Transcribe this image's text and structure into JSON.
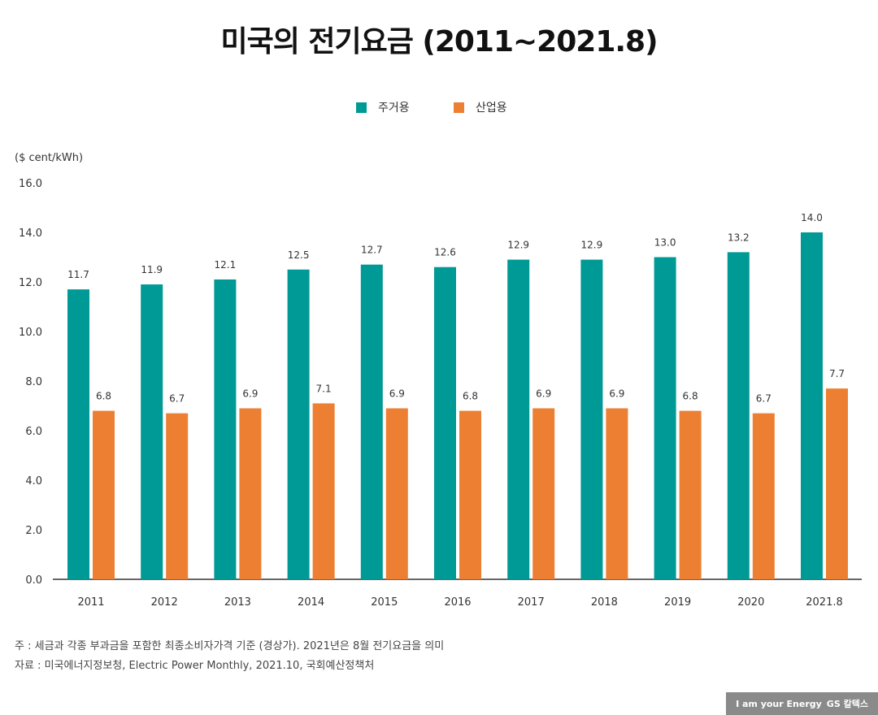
{
  "title": "미국의 전기요금 (2011~2021.8)",
  "unit": "($ cent/kWh)",
  "notes": [
    "주 : 세금과 각종 부과금을 포함한 최종소비자가격 기준 (경상가). 2021년은 8월 전기요금을 의미",
    "자료 : 미국에너지정보청, Electric Power Monthly, 2021.10, 국회예산정책처"
  ],
  "logo": {
    "slogan": "I am your Energy",
    "brand": "GS 칼텍스"
  },
  "chart_data": {
    "type": "bar",
    "title": "미국의 전기요금 (2011~2021.8)",
    "ylabel": "($ cent/kWh)",
    "ylim": [
      0,
      16
    ],
    "yticks": [
      "0.0",
      "2.0",
      "4.0",
      "6.0",
      "8.0",
      "10.0",
      "12.0",
      "14.0",
      "16.0"
    ],
    "grid": false,
    "legend_position": "top-center",
    "categories": [
      "2011",
      "2012",
      "2013",
      "2014",
      "2015",
      "2016",
      "2017",
      "2018",
      "2019",
      "2020",
      "2021.8"
    ],
    "series": [
      {
        "name": "주거용",
        "color": "#009a96",
        "values": [
          11.7,
          11.9,
          12.1,
          12.5,
          12.7,
          12.6,
          12.9,
          12.9,
          13.0,
          13.2,
          14.0
        ]
      },
      {
        "name": "산업용",
        "color": "#ed7f32",
        "values": [
          6.8,
          6.7,
          6.9,
          7.1,
          6.9,
          6.8,
          6.9,
          6.9,
          6.8,
          6.7,
          7.7
        ]
      }
    ]
  }
}
